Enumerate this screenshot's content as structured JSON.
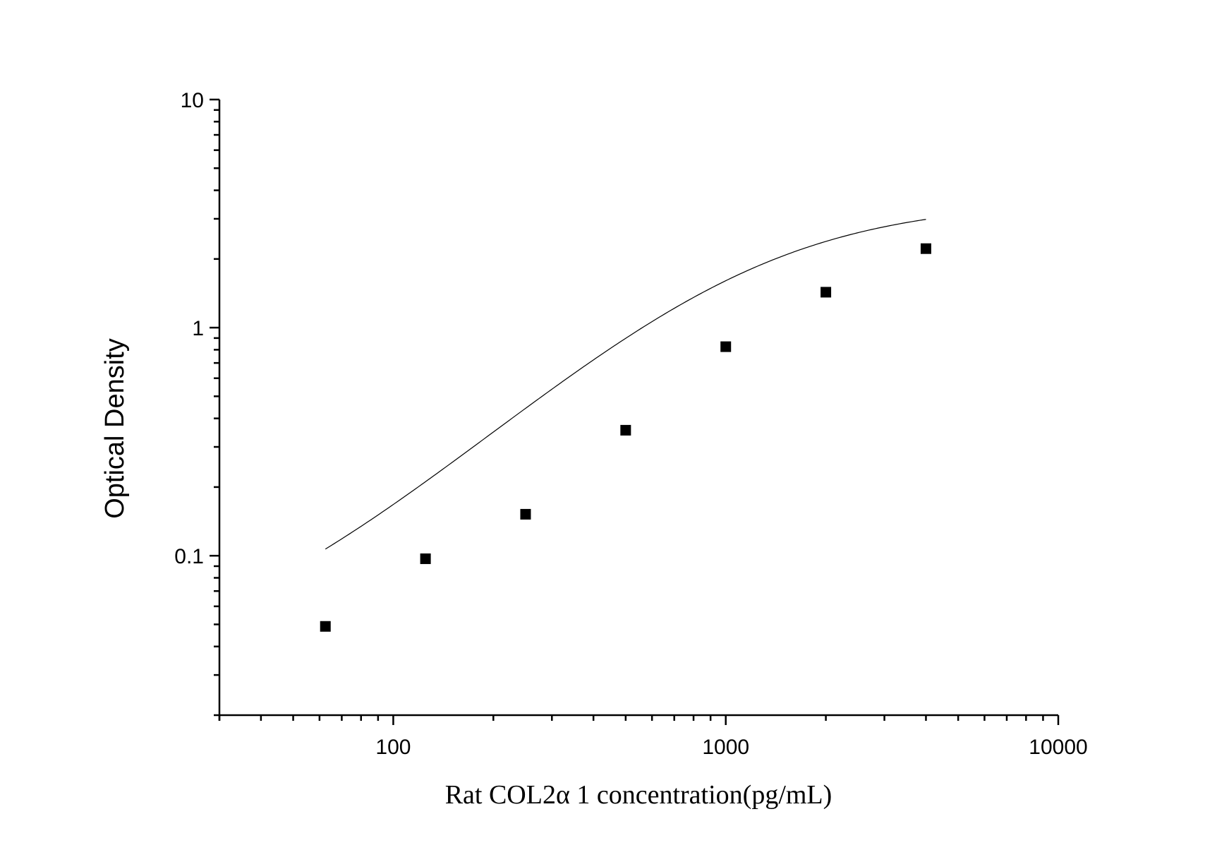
{
  "chart_data": {
    "type": "scatter",
    "xlabel": "Rat COL2α 1 concentration(pg/mL)",
    "ylabel": "Optical Density",
    "xscale": "log",
    "yscale": "log",
    "xlim": [
      30,
      10000
    ],
    "ylim": [
      0.02,
      10
    ],
    "x_major_ticks": [
      100,
      1000,
      10000
    ],
    "x_tick_labels": [
      "100",
      "1000",
      "10000"
    ],
    "y_major_ticks": [
      0.1,
      1,
      10
    ],
    "y_tick_labels": [
      "0.1",
      "1",
      "10"
    ],
    "grid": false,
    "series": [
      {
        "marker": "square",
        "x": [
          62.5,
          125,
          250,
          500,
          1000,
          2000,
          4000
        ],
        "y": [
          0.049,
          0.097,
          0.152,
          0.355,
          0.825,
          1.43,
          2.22
        ]
      }
    ],
    "fit_curve": {
      "type": "4PL",
      "A": 0.032,
      "D": 3.6,
      "C": 1200,
      "B": 1.3,
      "x_range": [
        62.5,
        4000
      ]
    }
  }
}
